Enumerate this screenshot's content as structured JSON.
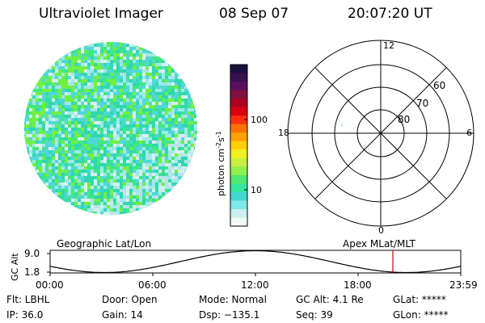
{
  "header": {
    "instrument": "Ultraviolet Imager",
    "date": "08 Sep 07",
    "time": "20:07:20 UT"
  },
  "colorbar": {
    "label_html": "photon cm<tspan baseline-shift='super' font-size='8'>-2</tspan>s<tspan baseline-shift='super' font-size='8'>-1</tspan>",
    "label_plain": "photon cm-2s-1",
    "tick_100": "100",
    "tick_10": "10",
    "colors": [
      "#1a1040",
      "#3a1050",
      "#5a1060",
      "#801040",
      "#b00020",
      "#d80010",
      "#ff3010",
      "#ff7000",
      "#ffa000",
      "#ffd000",
      "#f0f020",
      "#c8f040",
      "#90f050",
      "#50e870",
      "#30e8a0",
      "#40d8d0",
      "#80e8e8",
      "#c8f0f0",
      "#f0f8f8"
    ]
  },
  "polar": {
    "label_12": "12",
    "label_18": "18",
    "label_6": "6",
    "label_0": "0",
    "label_60": "60",
    "label_70": "70",
    "label_80": "80"
  },
  "timeline": {
    "left_label": "Geographic Lat/Lon",
    "right_label": "Apex MLat/MLT",
    "axis_label": "GC Alt",
    "y_top": "9.0",
    "y_bottom": "1.8",
    "ticks": [
      "00:00",
      "06:00",
      "12:00",
      "18:00",
      "23:59"
    ],
    "marker_color": "#cc0000"
  },
  "info": {
    "flt": "Flt: LBHL",
    "ip": "IP: 36.0",
    "door": "Door: Open",
    "gain": "Gain: 14",
    "mode": "Mode: Normal",
    "dsp": "Dsp: −135.1",
    "gcalt": "GC Alt: 4.1 Re",
    "seq": "Seq: 39",
    "glat": "GLat: *****",
    "glon": "GLon: *****"
  }
}
